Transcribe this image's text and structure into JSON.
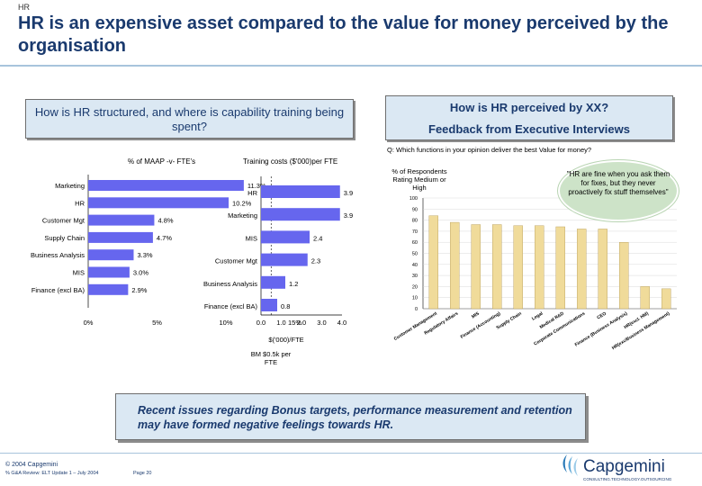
{
  "header": {
    "section": "HR",
    "title": "HR is an expensive asset compared to the value for money perceived by the organisation"
  },
  "left_panel": {
    "heading": "How is HR structured, and where is capability training being spent?",
    "maap_chart_title": "% of MAAP -v- FTE's",
    "training_chart_title": "Training costs ($'000)per FTE",
    "training_xlabel": "$('000)/FTE",
    "benchmark_note": "BM $0.5k per FTE"
  },
  "right_panel": {
    "heading_line1": "How is HR perceived by XX?",
    "heading_line2": "Feedback from Executive Interviews",
    "question": "Q: Which functions in your opinion deliver the best Value for money?",
    "ylabel": "% of Respondents Rating Medium or High",
    "quote": "\"HR are fine when you ask them for fixes, but they never proactively fix stuff themselves\""
  },
  "bottom_box": {
    "text": "Recent issues regarding Bonus targets, performance measurement and retention may have formed negative feelings towards HR."
  },
  "footer": {
    "copyright": "© 2004 Capgemini",
    "doc_ref": "% G&A Review: ELT Update 1 – July 2004",
    "page": "Page 20",
    "logo_text": "Capgemini",
    "logo_tagline": "CONSULTING.TECHNOLOGY.OUTSOURCING"
  },
  "colors": {
    "title": "#1a3a6e",
    "bar_blue": "#6666ee",
    "bar_tan": "#f0db9a",
    "panel_fill": "#dbe8f3",
    "quote_fill": "#cde3c8"
  },
  "chart_data": [
    {
      "type": "bar",
      "orientation": "horizontal",
      "title": "% of MAAP -v- FTE's",
      "categories": [
        "Marketing",
        "HR",
        "Customer Mgt",
        "Supply Chain",
        "Business Analysis",
        "MIS",
        "Finance (excl BA)"
      ],
      "values": [
        11.3,
        10.2,
        4.8,
        4.7,
        3.3,
        3.0,
        2.9
      ],
      "value_labels": [
        "11.3%",
        "10.2%",
        "4.8%",
        "4.7%",
        "3.3%",
        "3.0%",
        "2.9%"
      ],
      "x_ticks": [
        "0%",
        "5%",
        "10%",
        "15%"
      ],
      "xlim": [
        0,
        15
      ]
    },
    {
      "type": "bar",
      "orientation": "horizontal",
      "title": "Training costs ($'000)per FTE",
      "xlabel": "$('000)/FTE",
      "categories": [
        "HR",
        "Marketing",
        "MIS",
        "Customer Mgt",
        "Business Analysis",
        "Finance (excl BA)"
      ],
      "values": [
        3.9,
        3.9,
        2.4,
        2.3,
        1.2,
        0.8
      ],
      "value_labels": [
        "3.9",
        "3.9",
        "2.4",
        "2.3",
        "1.2",
        "0.8"
      ],
      "x_ticks": [
        "0.0",
        "1.0",
        "2.0",
        "3.0",
        "4.0"
      ],
      "xlim": [
        0,
        4
      ],
      "benchmark_note": "BM $0.5k per FTE"
    },
    {
      "type": "bar",
      "title": "Q: Which functions in your opinion deliver the best Value for money?",
      "ylabel": "% of Respondents Rating Medium or High",
      "categories": [
        "Customer Management",
        "Regulatory Affairs",
        "MIS",
        "Finance (Accounting)",
        "Supply Chain",
        "Legal",
        "Medical R&D",
        "Corporate Communications",
        "CEO",
        "Finance (Business Analysis)",
        "HR(excl. HM)",
        "HR(exc/Business Management)"
      ],
      "values": [
        84,
        78,
        76,
        76,
        75,
        75,
        74,
        72,
        72,
        60,
        20,
        18
      ],
      "y_ticks": [
        "0",
        "10",
        "20",
        "30",
        "40",
        "50",
        "60",
        "70",
        "80",
        "90",
        "100"
      ],
      "ylim": [
        0,
        100
      ]
    }
  ]
}
